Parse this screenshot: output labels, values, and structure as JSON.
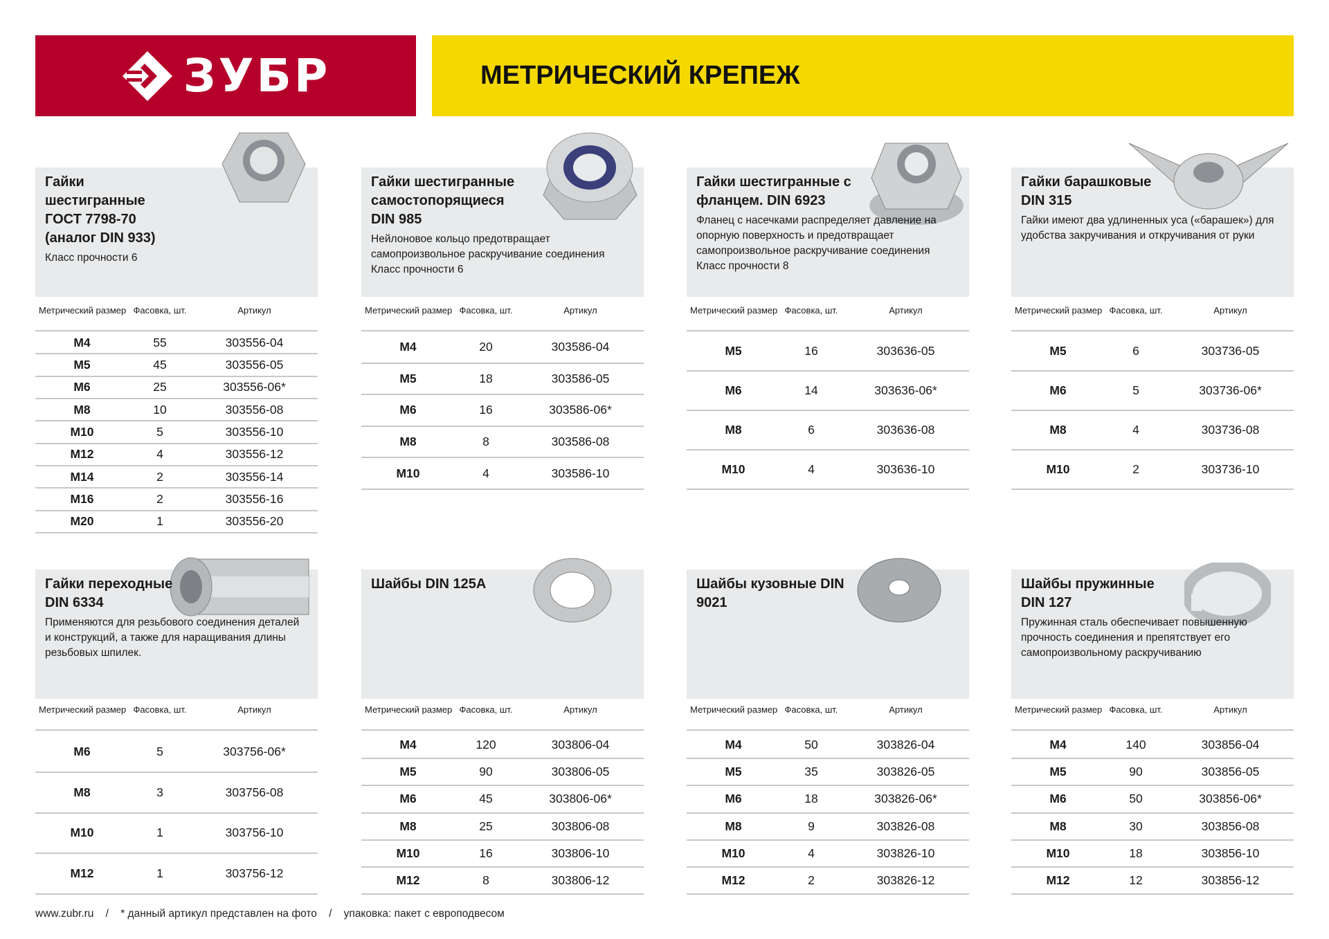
{
  "header": {
    "brand": "ЗУБР",
    "title": "МЕТРИЧЕСКИЙ КРЕПЕЖ",
    "brand_color": "#b5002b",
    "accent_color": "#f5d800"
  },
  "table_headers": {
    "size": "Метрический размер",
    "pack": "Фасовка, шт.",
    "article": "Артикул"
  },
  "cards": [
    {
      "title": "Гайки шестигранные ГОСТ 7798-70 (аналог DIN 933)",
      "desc": "Класс прочности 6",
      "image": "hex-nut",
      "rows": [
        [
          "M4",
          "55",
          "303556-04"
        ],
        [
          "M5",
          "45",
          "303556-05"
        ],
        [
          "M6",
          "25",
          "303556-06*"
        ],
        [
          "M8",
          "10",
          "303556-08"
        ],
        [
          "M10",
          "5",
          "303556-10"
        ],
        [
          "M12",
          "4",
          "303556-12"
        ],
        [
          "M14",
          "2",
          "303556-14"
        ],
        [
          "M16",
          "2",
          "303556-16"
        ],
        [
          "M20",
          "1",
          "303556-20"
        ]
      ]
    },
    {
      "title": "Гайки шестигранные самостопорящиеся DIN 985",
      "desc": "Нейлоновое кольцо предотвращает самопроизвольное раскручивание соединения Класс прочности 6",
      "image": "nylon-lock-nut",
      "rows": [
        [
          "M4",
          "20",
          "303586-04"
        ],
        [
          "M5",
          "18",
          "303586-05"
        ],
        [
          "M6",
          "16",
          "303586-06*"
        ],
        [
          "M8",
          "8",
          "303586-08"
        ],
        [
          "M10",
          "4",
          "303586-10"
        ]
      ]
    },
    {
      "title": "Гайки шестигранные с фланцем. DIN 6923",
      "desc": "Фланец с насечками распределяет давление на опорную поверхность и предотвращает самопроизвольное раскручивание соединения Класс прочности 8",
      "image": "flange-nut",
      "rows": [
        [
          "M5",
          "16",
          "303636-05"
        ],
        [
          "M6",
          "14",
          "303636-06*"
        ],
        [
          "M8",
          "6",
          "303636-08"
        ],
        [
          "M10",
          "4",
          "303636-10"
        ]
      ]
    },
    {
      "title": "Гайки барашковые DIN 315",
      "desc": "Гайки имеют два удлиненных уса («барашек») для удобства закручивания и откручивания от руки",
      "image": "wing-nut",
      "rows": [
        [
          "M5",
          "6",
          "303736-05"
        ],
        [
          "M6",
          "5",
          "303736-06*"
        ],
        [
          "M8",
          "4",
          "303736-08"
        ],
        [
          "M10",
          "2",
          "303736-10"
        ]
      ]
    },
    {
      "title": "Гайки переходные DIN 6334",
      "desc": "Применяются для резьбового соединения деталей и конструкций, а также для наращивания длины резьбовых шпилек.",
      "image": "coupling-nut",
      "rows": [
        [
          "M6",
          "5",
          "303756-06*"
        ],
        [
          "M8",
          "3",
          "303756-08"
        ],
        [
          "M10",
          "1",
          "303756-10"
        ],
        [
          "M12",
          "1",
          "303756-12"
        ]
      ]
    },
    {
      "title": "Шайбы DIN 125A",
      "desc": "",
      "image": "flat-washer",
      "rows": [
        [
          "M4",
          "120",
          "303806-04"
        ],
        [
          "M5",
          "90",
          "303806-05"
        ],
        [
          "M6",
          "45",
          "303806-06*"
        ],
        [
          "M8",
          "25",
          "303806-08"
        ],
        [
          "M10",
          "16",
          "303806-10"
        ],
        [
          "M12",
          "8",
          "303806-12"
        ]
      ]
    },
    {
      "title": "Шайбы кузовные DIN 9021",
      "desc": "",
      "image": "body-washer",
      "rows": [
        [
          "M4",
          "50",
          "303826-04"
        ],
        [
          "M5",
          "35",
          "303826-05"
        ],
        [
          "M6",
          "18",
          "303826-06*"
        ],
        [
          "M8",
          "9",
          "303826-08"
        ],
        [
          "M10",
          "4",
          "303826-10"
        ],
        [
          "M12",
          "2",
          "303826-12"
        ]
      ]
    },
    {
      "title": "Шайбы пружинные DIN 127",
      "desc": "Пружинная сталь обеспечивает повышенную прочность соединения и препятствует его самопроизвольному раскручиванию",
      "image": "spring-washer",
      "rows": [
        [
          "M4",
          "140",
          "303856-04"
        ],
        [
          "M5",
          "90",
          "303856-05"
        ],
        [
          "M6",
          "50",
          "303856-06*"
        ],
        [
          "M8",
          "30",
          "303856-08"
        ],
        [
          "M10",
          "18",
          "303856-10"
        ],
        [
          "M12",
          "12",
          "303856-12"
        ]
      ]
    }
  ],
  "footer": {
    "site": "www.zubr.ru",
    "note": "* данный артикул представлен на фото",
    "packaging": "упаковка: пакет с европодвесом"
  }
}
